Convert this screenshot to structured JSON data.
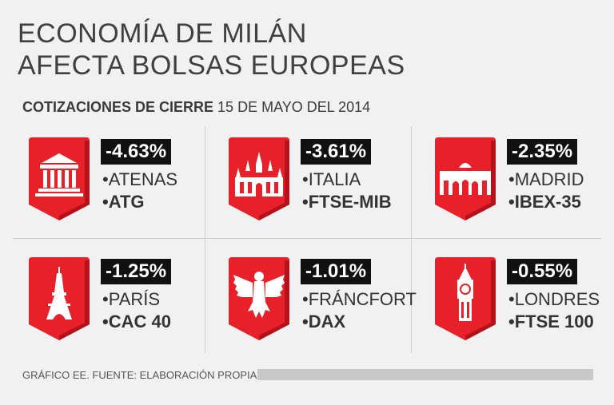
{
  "title": {
    "line1": "ECONOMÍA DE MILÁN",
    "line2": "AFECTA BOLSAS EUROPEAS"
  },
  "subtitle": {
    "bold": "COTIZACIONES DE CIERRE",
    "date": "15 DE MAYO DEL 2014"
  },
  "cards": [
    {
      "change": "-4.63%",
      "city": "•ATENAS",
      "index": "•ATG",
      "icon": "greek-temple-icon"
    },
    {
      "change": "-3.61%",
      "city": "•ITALIA",
      "index": "•FTSE-MIB",
      "icon": "milan-cathedral-icon"
    },
    {
      "change": "-2.35%",
      "city": "•MADRID",
      "index": "•IBEX-35",
      "icon": "puerta-de-alcala-icon"
    },
    {
      "change": "-1.25%",
      "city": "•PARÍS",
      "index": "•CAC 40",
      "icon": "eiffel-tower-icon"
    },
    {
      "change": "-1.01%",
      "city": "•FRÁNCFORT",
      "index": "•DAX",
      "icon": "german-eagle-icon"
    },
    {
      "change": "-0.55%",
      "city": "•LONDRES",
      "index": "•FTSE 100",
      "icon": "big-ben-icon"
    }
  ],
  "footer": {
    "source": "GRÁFICO EE. FUENTE: ELABORACIÓN PROPIA."
  },
  "colors": {
    "badge_red": "#e8202a",
    "badge_dark": "#b3121a",
    "label_bg": "#111111"
  }
}
